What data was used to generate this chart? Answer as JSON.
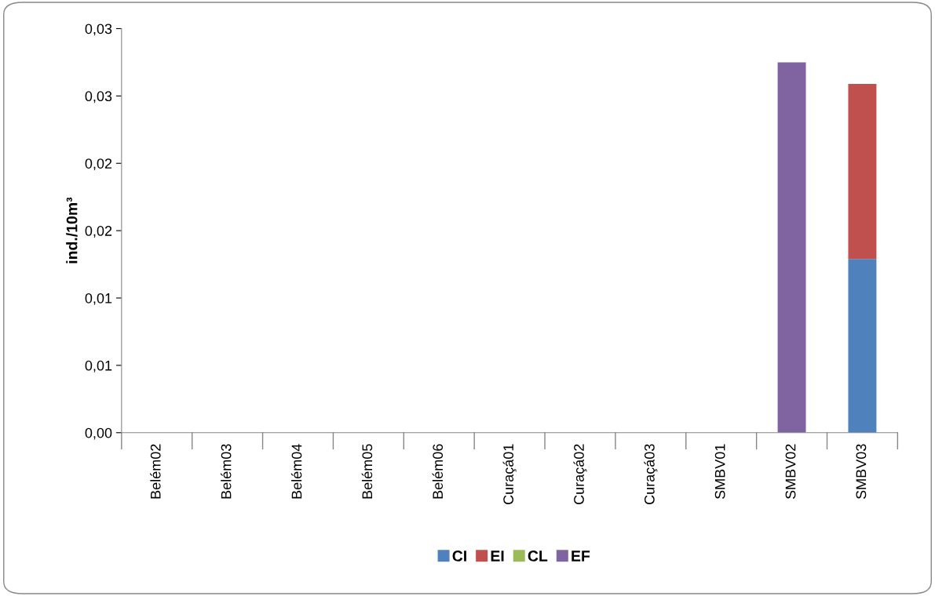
{
  "chart_data": {
    "type": "bar",
    "stacked": true,
    "ylabel": "ind./10m³",
    "categories": [
      "Belém02",
      "Belém03",
      "Belém04",
      "Belém05",
      "Belém06",
      "Curaçá01",
      "Curaçá02",
      "Curaçá03",
      "SMBV01",
      "SMBV02",
      "SMBV03"
    ],
    "series": [
      {
        "name": "CI",
        "color": "#4f81bd",
        "values": [
          0,
          0,
          0,
          0,
          0,
          0,
          0,
          0,
          0,
          0,
          0.0129
        ]
      },
      {
        "name": "EI",
        "color": "#c0504d",
        "values": [
          0,
          0,
          0,
          0,
          0,
          0,
          0,
          0,
          0,
          0,
          0.013
        ]
      },
      {
        "name": "CL",
        "color": "#9bbb59",
        "values": [
          0,
          0,
          0,
          0,
          0,
          0,
          0,
          0,
          0,
          0,
          0
        ]
      },
      {
        "name": "EF",
        "color": "#8064a2",
        "values": [
          0,
          0,
          0,
          0,
          0,
          0,
          0,
          0,
          0,
          0.0275,
          0
        ]
      }
    ],
    "ylim": [
      0,
      0.03
    ],
    "yticks": [
      {
        "value": 0,
        "label": "0,00"
      },
      {
        "value": 0.005,
        "label": "0,01"
      },
      {
        "value": 0.01,
        "label": "0,01"
      },
      {
        "value": 0.015,
        "label": "0,02"
      },
      {
        "value": 0.02,
        "label": "0,02"
      },
      {
        "value": 0.025,
        "label": "0,03"
      },
      {
        "value": 0.03,
        "label": "0,03"
      }
    ],
    "grid": false,
    "legend": "bottom"
  }
}
